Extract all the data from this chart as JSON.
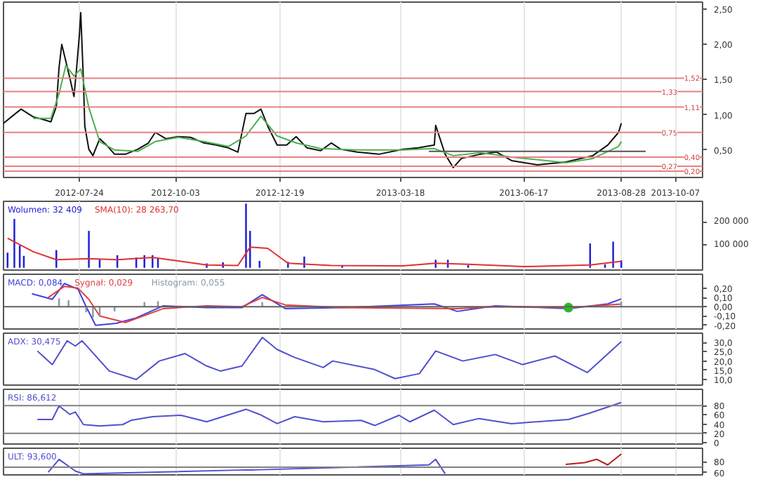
{
  "chart_data": [
    {
      "type": "line",
      "xlim": [
        "2012-05-29",
        "2013-10-27"
      ],
      "ylim": [
        0.11,
        2.6
      ],
      "xticks": [
        "2012-07-24",
        "2012-10-03",
        "2012-12-19",
        "2013-03-18",
        "2013-06-17",
        "2013-08-28",
        "2013-10-07"
      ],
      "yticks": [
        {
          "value": 0.5,
          "label": "0,50"
        },
        {
          "value": 1.0,
          "label": "1,00"
        },
        {
          "value": 1.5,
          "label": "1,50"
        },
        {
          "value": 2.0,
          "label": "2,00"
        },
        {
          "value": 2.5,
          "label": "2,50"
        }
      ],
      "grid": "x",
      "series": [
        {
          "color": "#111111",
          "x": [
            "2012-05-29",
            "2012-06-07",
            "2012-06-11",
            "2012-06-20",
            "2012-06-28",
            "2012-07-03",
            "2012-07-07",
            "2012-07-09",
            "2012-07-11",
            "2012-07-14",
            "2012-07-17",
            "2012-07-20",
            "2012-07-22",
            "2012-07-24",
            "2012-07-25",
            "2012-07-27",
            "2012-07-28",
            "2012-07-31",
            "2012-08-03",
            "2012-08-08",
            "2012-08-13",
            "2012-08-19",
            "2012-08-27",
            "2012-09-05",
            "2012-09-13",
            "2012-09-18",
            "2012-09-26",
            "2012-10-05",
            "2012-10-14",
            "2012-10-24",
            "2012-11-02",
            "2012-11-11",
            "2012-11-18",
            "2012-11-24",
            "2012-11-30",
            "2012-12-05",
            "2012-12-10",
            "2012-12-17",
            "2012-12-24",
            "2012-12-31",
            "2013-01-08",
            "2013-01-18",
            "2013-01-26",
            "2013-02-02",
            "2013-02-14",
            "2013-03-02",
            "2013-03-20",
            "2013-03-31",
            "2013-04-12",
            "2013-04-13",
            "2013-04-20",
            "2013-04-26",
            "2013-05-02",
            "2013-05-16",
            "2013-05-28",
            "2013-06-08",
            "2013-06-27",
            "2013-07-18",
            "2013-08-07",
            "2013-08-18",
            "2013-08-26",
            "2013-08-28"
          ],
          "values": [
            0.88,
            1.02,
            1.08,
            0.97,
            0.93,
            0.9,
            1.12,
            1.67,
            2.0,
            1.76,
            1.52,
            1.26,
            1.67,
            2.13,
            2.45,
            1.48,
            0.84,
            0.51,
            0.42,
            0.66,
            0.57,
            0.44,
            0.44,
            0.51,
            0.6,
            0.75,
            0.66,
            0.69,
            0.68,
            0.6,
            0.57,
            0.53,
            0.47,
            1.02,
            1.02,
            1.08,
            0.84,
            0.57,
            0.57,
            0.69,
            0.53,
            0.49,
            0.6,
            0.51,
            0.47,
            0.44,
            0.51,
            0.53,
            0.57,
            0.85,
            0.44,
            0.25,
            0.38,
            0.44,
            0.47,
            0.35,
            0.29,
            0.33,
            0.42,
            0.57,
            0.75,
            0.88
          ]
        },
        {
          "color": "#4caf50",
          "x": [
            "2012-06-20",
            "2012-07-03",
            "2012-07-09",
            "2012-07-14",
            "2012-07-20",
            "2012-07-25",
            "2012-07-31",
            "2012-08-08",
            "2012-08-19",
            "2012-09-05",
            "2012-09-18",
            "2012-10-05",
            "2012-10-24",
            "2012-11-11",
            "2012-11-24",
            "2012-12-05",
            "2012-12-17",
            "2012-12-31",
            "2013-01-18",
            "2013-02-14",
            "2013-03-20",
            "2013-04-12",
            "2013-04-26",
            "2013-05-16",
            "2013-06-08",
            "2013-07-18",
            "2013-08-07",
            "2013-08-26",
            "2013-08-28"
          ],
          "values": [
            0.95,
            0.95,
            1.3,
            1.7,
            1.55,
            1.65,
            1.1,
            0.62,
            0.5,
            0.48,
            0.62,
            0.68,
            0.62,
            0.55,
            0.7,
            0.98,
            0.7,
            0.6,
            0.52,
            0.5,
            0.5,
            0.52,
            0.42,
            0.46,
            0.4,
            0.32,
            0.38,
            0.55,
            0.62
          ]
        },
        {
          "color": "#555555",
          "x": [
            "2013-04-08",
            "2013-09-15"
          ],
          "values": [
            0.48,
            0.48
          ]
        }
      ],
      "ref_lines": [
        {
          "axis": "y",
          "value": 1.52,
          "label": "1,52",
          "color": "#e88080"
        },
        {
          "axis": "y",
          "value": 1.33,
          "label": "1,33",
          "color": "#e88080"
        },
        {
          "axis": "y",
          "value": 1.11,
          "label": "1,11",
          "color": "#e88080"
        },
        {
          "axis": "y",
          "value": 0.75,
          "label": "0,75",
          "color": "#e88080"
        },
        {
          "axis": "y",
          "value": 0.4,
          "label": "0,40",
          "color": "#e88080"
        },
        {
          "axis": "y",
          "value": 0.27,
          "label": "0,27",
          "color": "#e88080"
        },
        {
          "axis": "y",
          "value": 0.2,
          "label": "0,20",
          "color": "#e88080"
        }
      ]
    },
    {
      "type": "bar",
      "xlim": [
        "2012-05-29",
        "2013-10-27"
      ],
      "ylim": [
        -10000,
        290000
      ],
      "xticks": [
        "2012-07-24",
        "2012-10-03",
        "2012-12-19",
        "2013-03-18",
        "2013-06-17",
        "2013-08-28",
        "2013-10-07"
      ],
      "yticks": [
        {
          "value": 100000,
          "label": "100 000"
        },
        {
          "value": 200000,
          "label": "200 000"
        }
      ],
      "grid": "x",
      "tick_labels": "y",
      "legend": "top left",
      "series": [
        {
          "name": "Wolumen: 32 409",
          "color": "#2020d8",
          "x": [
            "2012-06-01",
            "2012-06-06",
            "2012-06-10",
            "2012-06-13",
            "2012-07-07",
            "2012-07-31",
            "2012-08-08",
            "2012-08-21",
            "2012-09-04",
            "2012-09-10",
            "2012-09-16",
            "2012-09-20",
            "2012-10-26",
            "2012-11-07",
            "2012-11-24",
            "2012-11-27",
            "2012-12-04",
            "2012-12-25",
            "2013-01-06",
            "2013-02-03",
            "2013-04-13",
            "2013-04-22",
            "2013-05-07",
            "2013-08-05",
            "2013-08-16",
            "2013-08-22",
            "2013-08-28"
          ],
          "values": [
            66000,
            213000,
            97000,
            52000,
            77000,
            161000,
            39000,
            55000,
            45000,
            55000,
            55000,
            39000,
            19000,
            24000,
            280000,
            161000,
            30000,
            26000,
            49000,
            8000,
            35000,
            35000,
            12000,
            106000,
            15000,
            114000,
            32409
          ]
        },
        {
          "name": "SMA(10): 28 263,70",
          "type": "line",
          "color": "#e03030",
          "x": [
            "2012-06-01",
            "2012-06-20",
            "2012-07-07",
            "2012-07-31",
            "2012-08-21",
            "2012-09-16",
            "2012-10-05",
            "2012-10-26",
            "2012-11-18",
            "2012-11-27",
            "2012-12-10",
            "2012-12-25",
            "2013-01-26",
            "2013-03-20",
            "2013-04-13",
            "2013-05-07",
            "2013-06-17",
            "2013-08-05",
            "2013-08-28"
          ],
          "values": [
            129000,
            70000,
            35000,
            40000,
            35000,
            45000,
            30000,
            12000,
            10000,
            90000,
            85000,
            20000,
            10000,
            8000,
            20000,
            15000,
            5000,
            12000,
            28264
          ]
        }
      ]
    },
    {
      "type": "line",
      "xlim": [
        "2012-05-29",
        "2013-10-27"
      ],
      "ylim": [
        -0.24,
        0.35
      ],
      "xticks": [
        "2012-07-24",
        "2012-10-03",
        "2012-12-19",
        "2013-03-18",
        "2013-06-17",
        "2013-08-28",
        "2013-10-07"
      ],
      "yticks": [
        {
          "value": -0.2,
          "label": "-0,20"
        },
        {
          "value": -0.1,
          "label": "-0,10"
        },
        {
          "value": 0,
          "label": "0,00"
        },
        {
          "value": 0.1,
          "label": "0,10"
        },
        {
          "value": 0.2,
          "label": "0,20"
        }
      ],
      "grid": "x",
      "tick_labels": "y",
      "legend": "top left",
      "series": [
        {
          "name": "MACD: 0,084",
          "color": "#4040e0",
          "x": [
            "2012-06-19",
            "2012-07-04",
            "2012-07-13",
            "2012-07-23",
            "2012-07-29",
            "2012-08-05",
            "2012-08-20",
            "2012-09-04",
            "2012-09-24",
            "2012-10-26",
            "2012-11-21",
            "2012-12-06",
            "2012-12-23",
            "2013-02-03",
            "2013-04-12",
            "2013-04-29",
            "2013-05-27",
            "2013-07-20",
            "2013-08-18",
            "2013-08-28"
          ],
          "values": [
            0.14,
            0.08,
            0.25,
            0.19,
            0.0,
            -0.2,
            -0.18,
            -0.12,
            0.01,
            -0.01,
            -0.01,
            0.13,
            -0.02,
            -0.01,
            0.03,
            -0.05,
            0.01,
            -0.02,
            0.03,
            0.084
          ]
        },
        {
          "name": "Sygnał: 0,029",
          "color": "#e04040",
          "x": [
            "2012-07-01",
            "2012-07-13",
            "2012-07-23",
            "2012-07-31",
            "2012-08-08",
            "2012-08-27",
            "2012-09-24",
            "2012-10-26",
            "2012-11-21",
            "2012-12-06",
            "2012-12-23",
            "2013-02-03",
            "2013-04-29",
            "2013-05-27",
            "2013-07-20",
            "2013-08-28"
          ],
          "values": [
            0.1,
            0.22,
            0.2,
            0.08,
            -0.1,
            -0.17,
            -0.02,
            0.01,
            0.0,
            0.1,
            0.02,
            -0.01,
            -0.02,
            0.0,
            -0.01,
            0.029
          ]
        },
        {
          "name": "Histogram: 0,055",
          "type": "bar",
          "color": "#8899aa",
          "x": [
            "2012-07-09",
            "2012-07-16",
            "2012-07-29",
            "2012-08-03",
            "2012-08-08",
            "2012-08-19",
            "2012-09-10",
            "2012-09-20",
            "2012-12-06",
            "2013-08-28"
          ],
          "values": [
            0.09,
            0.07,
            -0.06,
            -0.12,
            -0.1,
            -0.05,
            0.05,
            0.06,
            0.05,
            0.055
          ]
        },
        {
          "type": "scatter",
          "color": "#2eb82e",
          "x": [
            "2013-07-20"
          ],
          "values": [
            -0.01
          ]
        }
      ],
      "ref_lines": [
        {
          "axis": "y",
          "value": 0,
          "color": "#606060"
        }
      ]
    },
    {
      "type": "line",
      "xlim": [
        "2012-05-29",
        "2013-10-27"
      ],
      "ylim": [
        7,
        35
      ],
      "xticks": [
        "2012-07-24",
        "2012-10-03",
        "2012-12-19",
        "2013-03-18",
        "2013-06-17",
        "2013-08-28",
        "2013-10-07"
      ],
      "yticks": [
        {
          "value": 10,
          "label": "10,0"
        },
        {
          "value": 15,
          "label": "15,0"
        },
        {
          "value": 20,
          "label": "20,0"
        },
        {
          "value": 25,
          "label": "25,0"
        },
        {
          "value": 30,
          "label": "30,0"
        }
      ],
      "grid": "x",
      "tick_labels": "y",
      "legend": "top left",
      "series": [
        {
          "name": "ADX: 30,475",
          "color": "#5050d0",
          "x": [
            "2012-06-23",
            "2012-07-04",
            "2012-07-15",
            "2012-07-21",
            "2012-07-26",
            "2012-08-15",
            "2012-09-04",
            "2012-09-21",
            "2012-10-10",
            "2012-10-26",
            "2012-11-05",
            "2012-11-21",
            "2012-12-06",
            "2012-12-17",
            "2012-12-30",
            "2013-01-20",
            "2013-01-27",
            "2013-02-27",
            "2013-03-14",
            "2013-04-01",
            "2013-04-13",
            "2013-05-03",
            "2013-05-27",
            "2013-06-16",
            "2013-07-10",
            "2013-08-03",
            "2013-08-28"
          ],
          "values": [
            25.4,
            18.1,
            30.9,
            28.1,
            30.9,
            14.6,
            10.0,
            20.0,
            24.0,
            17.3,
            14.6,
            17.3,
            32.7,
            26.2,
            21.9,
            16.5,
            20.0,
            15.4,
            10.5,
            13.2,
            25.4,
            20.0,
            23.5,
            18.1,
            22.7,
            13.8,
            30.475
          ]
        }
      ]
    },
    {
      "type": "line",
      "xlim": [
        "2012-05-29",
        "2013-10-27"
      ],
      "ylim": [
        -3,
        115
      ],
      "xticks": [
        "2012-07-24",
        "2012-10-03",
        "2012-12-19",
        "2013-03-18",
        "2013-06-17",
        "2013-08-28",
        "2013-10-07"
      ],
      "yticks": [
        0,
        20,
        40,
        60,
        80
      ],
      "grid": "x",
      "tick_labels": "y",
      "legend": "top left",
      "series": [
        {
          "name": "RSI: 86,612",
          "color": "#5050d0",
          "x": [
            "2012-06-23",
            "2012-07-04",
            "2012-07-09",
            "2012-07-17",
            "2012-07-21",
            "2012-07-27",
            "2012-08-08",
            "2012-08-25",
            "2012-08-31",
            "2012-09-16",
            "2012-10-07",
            "2012-10-26",
            "2012-11-24",
            "2012-12-04",
            "2012-12-17",
            "2012-12-30",
            "2013-01-20",
            "2013-02-17",
            "2013-02-27",
            "2013-03-17",
            "2013-03-25",
            "2013-04-12",
            "2013-04-26",
            "2013-05-15",
            "2013-06-08",
            "2013-07-20",
            "2013-08-05",
            "2013-08-28"
          ],
          "values": [
            50,
            50,
            79,
            61,
            66,
            39,
            36,
            39,
            48,
            56,
            59,
            45,
            72,
            61,
            41,
            56,
            45,
            48,
            37,
            59,
            45,
            70,
            39,
            52,
            41,
            50,
            64,
            86.612
          ]
        }
      ],
      "ref_lines": [
        {
          "axis": "y",
          "value": 80,
          "color": "#808080"
        },
        {
          "axis": "y",
          "value": 20,
          "color": "#808080"
        }
      ]
    },
    {
      "type": "line",
      "xlim": [
        "2012-05-29",
        "2013-10-27"
      ],
      "ylim": [
        56,
        104
      ],
      "xticks": [
        "2012-07-24",
        "2012-10-03",
        "2012-12-19",
        "2013-03-18",
        "2013-06-17",
        "2013-08-28",
        "2013-10-07"
      ],
      "yticks": [
        60,
        80
      ],
      "grid": "x",
      "tick_labels": "y",
      "legend": "top left",
      "series": [
        {
          "name": "ULT: 93,600",
          "color": "#5050d0",
          "x": [
            "2012-07-01",
            "2012-07-09",
            "2012-07-21",
            "2012-07-27",
            "2012-11-24",
            "2012-11-30",
            "2013-04-08",
            "2013-04-13",
            "2013-04-20"
          ],
          "values": [
            61,
            84,
            63,
            58,
            65,
            65,
            74,
            84,
            58
          ]
        },
        {
          "color": "#b02020",
          "x": [
            "2013-07-18",
            "2013-08-01",
            "2013-08-10",
            "2013-08-18",
            "2013-08-28"
          ],
          "values": [
            75,
            78,
            84,
            74,
            93.6
          ]
        }
      ],
      "ref_lines": [
        {
          "axis": "y",
          "value": 70,
          "color": "#808080"
        }
      ]
    }
  ]
}
